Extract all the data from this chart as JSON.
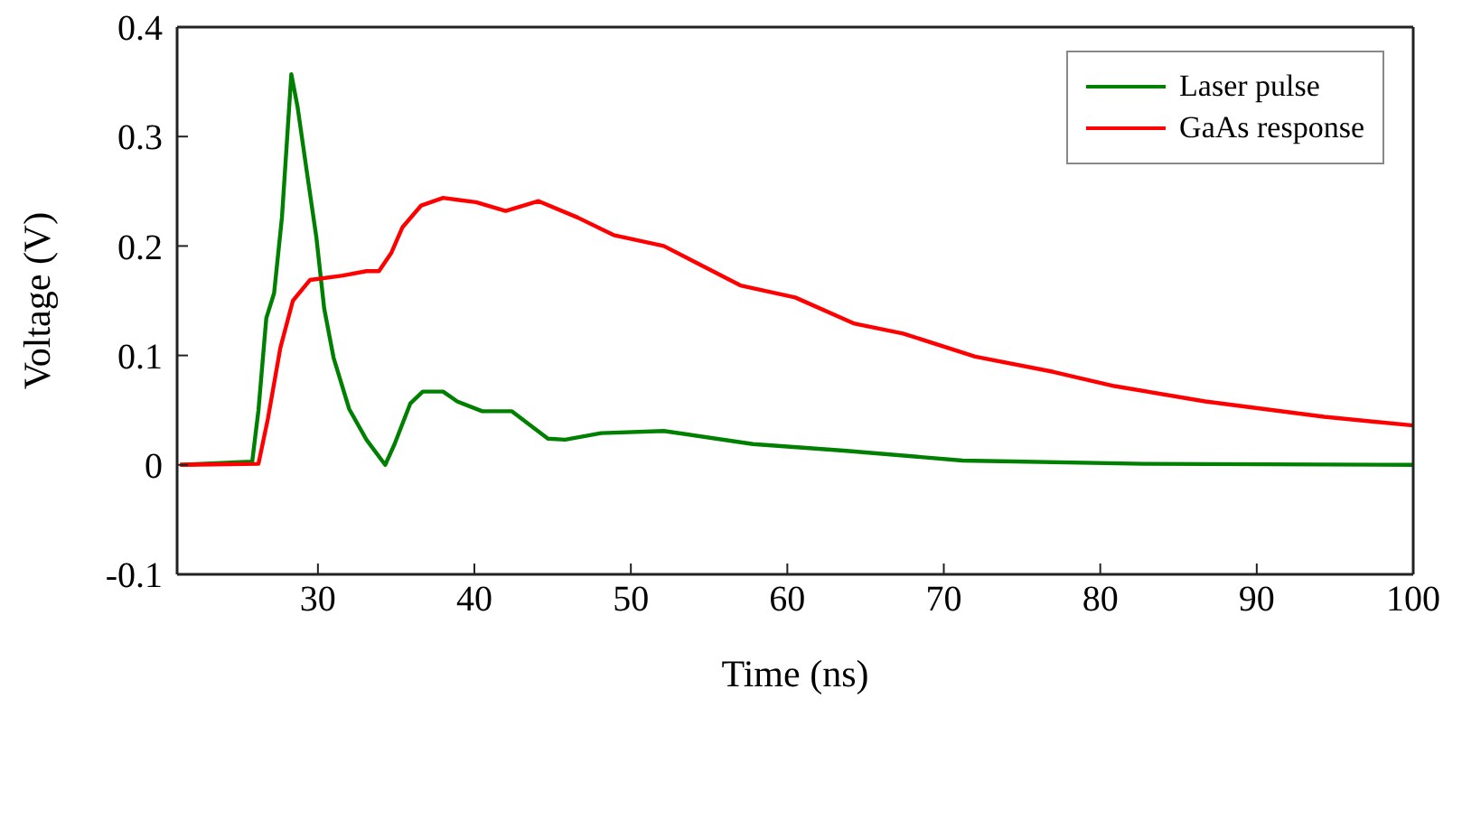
{
  "chart_data": {
    "type": "line",
    "xlabel": "Time (ns)",
    "ylabel": "Voltage (V)",
    "xlim": [
      21,
      100
    ],
    "xticks": [
      30,
      40,
      50,
      60,
      70,
      80,
      90,
      100
    ],
    "ylim": [
      -0.1,
      0.4
    ],
    "yticks": [
      -0.1,
      0,
      0.1,
      0.2,
      0.3,
      0.4
    ],
    "grid": false,
    "legend": "top right",
    "marker": "none",
    "line_style": "solid",
    "series": [
      {
        "name": "Laser pulse",
        "color": "#008000",
        "x": [
          21.2,
          25.8,
          26.2,
          26.7,
          27.2,
          27.7,
          28.3,
          28.7,
          29.3,
          29.9,
          30.4,
          31.0,
          32.0,
          33.1,
          34.3,
          34.9,
          35.9,
          36.7,
          38.0,
          38.9,
          40.5,
          42.4,
          43.5,
          44.7,
          45.8,
          48.1,
          52.1,
          57.8,
          63.6,
          71.2,
          82.8,
          100
        ],
        "values": [
          0,
          0.003,
          0.05,
          0.134,
          0.157,
          0.226,
          0.357,
          0.327,
          0.267,
          0.208,
          0.143,
          0.098,
          0.051,
          0.023,
          0,
          0.019,
          0.056,
          0.067,
          0.067,
          0.058,
          0.049,
          0.049,
          0.037,
          0.024,
          0.023,
          0.029,
          0.031,
          0.019,
          0.013,
          0.004,
          0.001,
          0
        ]
      },
      {
        "name": "GaAs response",
        "color": "#ff0000",
        "x": [
          21.2,
          26.2,
          26.8,
          27.6,
          28.4,
          29.5,
          31.6,
          33.1,
          33.9,
          34.7,
          35.4,
          36.6,
          38.0,
          40.1,
          42.0,
          44.1,
          46.6,
          48.9,
          52.1,
          57.0,
          60.5,
          64.3,
          67.4,
          72.0,
          77.0,
          80.9,
          86.7,
          94.3,
          100
        ],
        "values": [
          0,
          0.001,
          0.042,
          0.107,
          0.15,
          0.169,
          0.173,
          0.177,
          0.177,
          0.194,
          0.217,
          0.237,
          0.244,
          0.24,
          0.232,
          0.241,
          0.226,
          0.21,
          0.2,
          0.164,
          0.153,
          0.129,
          0.12,
          0.099,
          0.085,
          0.072,
          0.058,
          0.044,
          0.036
        ]
      }
    ]
  }
}
